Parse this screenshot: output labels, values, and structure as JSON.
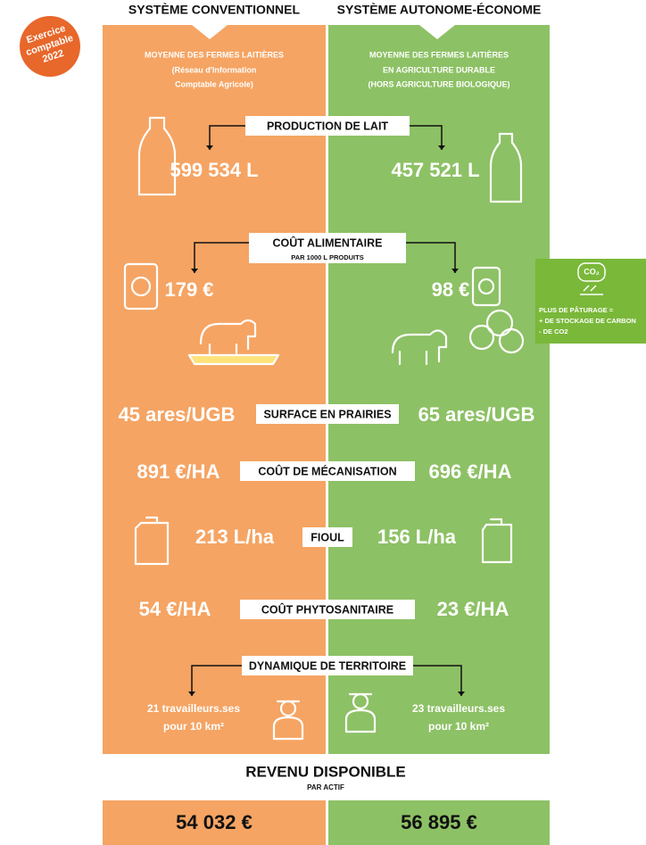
{
  "badge": {
    "lines": [
      "Exercice",
      "comptable",
      "2022"
    ]
  },
  "columns": [
    {
      "header": "SYSTÈME CONVENTIONNEL",
      "description": [
        "MOYENNE DES FERMES LAITIÈRES",
        "(Réseau d'Information",
        "Comptable Agricole)"
      ]
    },
    {
      "header": "SYSTÈME AUTONOME-ÉCONOME",
      "description": [
        "MOYENNE DES FERMES LAITIÈRES",
        "EN AGRICULTURE DURABLE",
        "(HORS AGRICULTURE BIOLOGIQUE)"
      ]
    }
  ],
  "sections": [
    {
      "label": "PRODUCTION DE LAIT",
      "left": [
        "599 534 L"
      ],
      "right": [
        "457 521 L"
      ]
    },
    {
      "label": "COÛT ALIMENTAIRE",
      "sublabel": "PAR 1000 L PRODUITS",
      "left": [
        "179 €"
      ],
      "right": [
        "98 €"
      ]
    },
    {
      "label": "SURFACE EN PRAIRIES",
      "left": [
        "45 ares/UGB"
      ],
      "right": [
        "65 ares/UGB"
      ]
    },
    {
      "label": "COÛT DE MÉCANISATION",
      "left": [
        "891 €/HA"
      ],
      "right": [
        "696 €/HA"
      ]
    },
    {
      "label": "FIOUL",
      "left": [
        "213 L/ha"
      ],
      "right": [
        "156 L/ha"
      ]
    },
    {
      "label": "COÛT PHYTOSANITAIRE",
      "left": [
        "54 €/HA"
      ],
      "right": [
        "23 €/HA"
      ]
    },
    {
      "label": "DYNAMIQUE DE TERRITOIRE",
      "left": [
        "21 travailleurs.ses",
        "pour 10 km²"
      ],
      "right": [
        "23 travailleurs.ses",
        "pour 10 km²"
      ]
    }
  ],
  "side_note": {
    "icon_label": "CO₂",
    "lines": [
      "PLUS DE PÂTURAGE =",
      "+ DE STOCKAGE DE CARBON",
      "- DE CO2"
    ]
  },
  "footer": {
    "title": "REVENU DISPONIBLE",
    "subtitle": "PAR ACTIF",
    "left": "54 032 €",
    "right": "56 895 €"
  }
}
